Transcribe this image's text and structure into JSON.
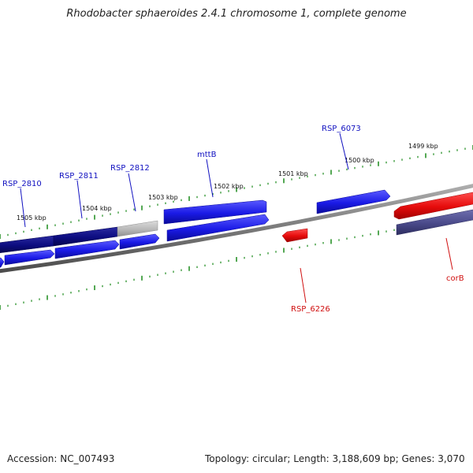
{
  "title": "Rhodobacter sphaeroides 2.4.1 chromosome 1, complete genome",
  "footer": {
    "accession": "Accession: NC_007493",
    "summary": "Topology: circular; Length: 3,188,609 bp; Genes: 3,070"
  },
  "colors": {
    "forward_gene": "#1a1ae6",
    "forward_gene_dark": "#0c0c80",
    "reverse_gene": "#e60c0c",
    "reverse_gene_dark": "#4a4a8a",
    "gray_feature": "#b8b8b8",
    "backbone": "#808080",
    "tick": "#1a8a1a",
    "label_blue": "#1010c0",
    "label_red": "#d01010"
  },
  "scale_labels": [
    "1499 kbp",
    "1500 kbp",
    "1501 kbp",
    "1502 kbp",
    "1503 kbp",
    "1504 kbp",
    "1505 kbp"
  ],
  "gene_labels": [
    {
      "name": "RSP_6073",
      "color": "label_blue"
    },
    {
      "name": "mttB",
      "color": "label_blue"
    },
    {
      "name": "RSP_2812",
      "color": "label_blue"
    },
    {
      "name": "RSP_2811",
      "color": "label_blue"
    },
    {
      "name": "RSP_2810",
      "color": "label_blue"
    },
    {
      "name": "RSP_6226",
      "color": "label_red"
    },
    {
      "name": "corB",
      "color": "label_red"
    }
  ]
}
